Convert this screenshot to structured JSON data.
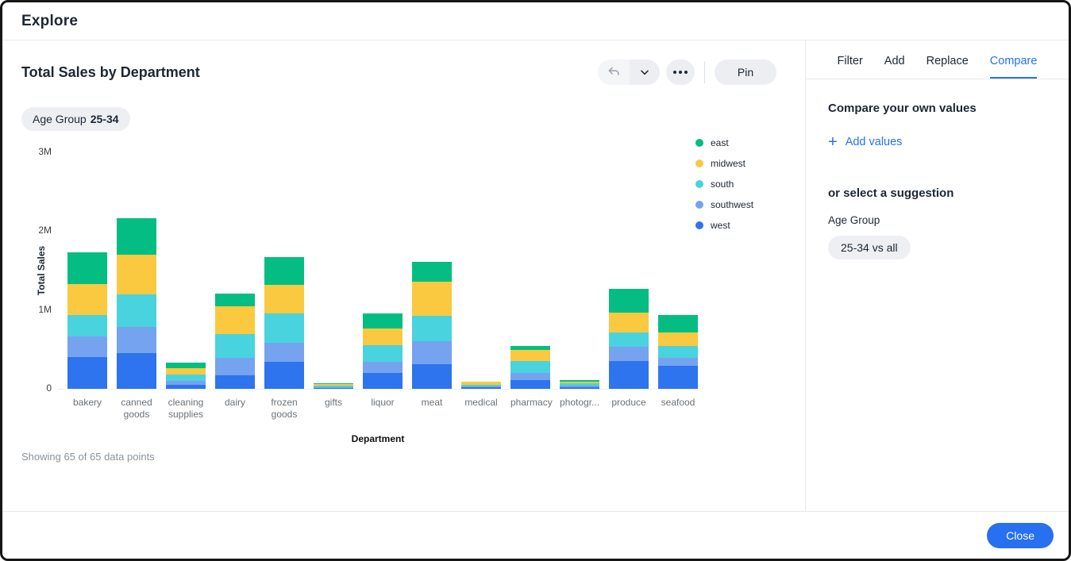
{
  "header": {
    "title": "Explore"
  },
  "main": {
    "chart_title": "Total Sales by Department",
    "toolbar": {
      "pin_label": "Pin"
    },
    "filter_chip": {
      "label": "Age Group",
      "value": "25-34"
    },
    "footnote": "Showing 65 of 65 data points"
  },
  "chart_data": {
    "type": "bar",
    "stacked": true,
    "title": "Total Sales by Department",
    "xlabel": "Department",
    "ylabel": "Total Sales",
    "ylim": [
      0,
      3000000
    ],
    "yticks": [
      {
        "label": "0",
        "value": 0
      },
      {
        "label": "1M",
        "value": 1000000
      },
      {
        "label": "2M",
        "value": 2000000
      },
      {
        "label": "3M",
        "value": 3000000
      }
    ],
    "grid": false,
    "legend_position": "right",
    "categories": [
      "bakery",
      "canned goods",
      "cleaning supplies",
      "dairy",
      "frozen goods",
      "gifts",
      "liquor",
      "meat",
      "medical",
      "pharmacy",
      "photogr...",
      "produce",
      "seafood"
    ],
    "series": [
      {
        "name": "east",
        "color": "#04bd82",
        "values": [
          400000,
          470000,
          70000,
          160000,
          350000,
          13000,
          190000,
          250000,
          5000,
          50000,
          20000,
          300000,
          220000
        ]
      },
      {
        "name": "midwest",
        "color": "#fbc93f",
        "values": [
          390000,
          500000,
          80000,
          350000,
          360000,
          15000,
          220000,
          430000,
          35000,
          140000,
          25000,
          260000,
          180000
        ]
      },
      {
        "name": "south",
        "color": "#49d3de",
        "values": [
          280000,
          410000,
          80000,
          310000,
          380000,
          20000,
          210000,
          330000,
          20000,
          150000,
          25000,
          180000,
          150000
        ]
      },
      {
        "name": "southwest",
        "color": "#75a3ef",
        "values": [
          260000,
          340000,
          50000,
          220000,
          240000,
          10000,
          140000,
          290000,
          12000,
          90000,
          20000,
          180000,
          100000
        ]
      },
      {
        "name": "west",
        "color": "#2d74ee",
        "values": [
          400000,
          450000,
          50000,
          170000,
          340000,
          15000,
          200000,
          310000,
          20000,
          110000,
          25000,
          350000,
          290000
        ]
      }
    ]
  },
  "panel": {
    "tabs": [
      {
        "label": "Filter"
      },
      {
        "label": "Add"
      },
      {
        "label": "Replace"
      },
      {
        "label": "Compare"
      }
    ],
    "active_tab": "Compare",
    "compare_heading": "Compare your own values",
    "add_values_label": "Add values",
    "suggestion_heading": "or select a suggestion",
    "suggestion_group": "Age Group",
    "suggestion_chip": "25-34 vs all"
  },
  "footer": {
    "close_label": "Close"
  },
  "colors": {
    "accent": "#2770ef",
    "chip_bg": "#edeff2",
    "border": "#e6e8ea"
  }
}
